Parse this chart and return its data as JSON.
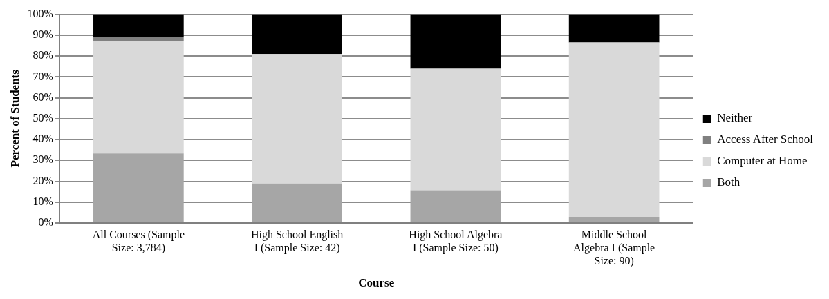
{
  "chart_data": {
    "type": "bar",
    "stacked": true,
    "xlabel": "Course",
    "ylabel": "Percent of Students",
    "categories": [
      "All Courses (Sample Size: 3,784)",
      "High School English I (Sample Size: 42)",
      "High School Algebra I (Sample Size: 50)",
      "Middle School Algebra I (Sample Size: 90)"
    ],
    "series": [
      {
        "name": "Both",
        "color": "#a6a6a6",
        "values": [
          33.3,
          18.9,
          15.7,
          3.0
        ]
      },
      {
        "name": "Computer at Home",
        "color": "#d9d9d9",
        "values": [
          53.9,
          62.0,
          58.2,
          83.5
        ]
      },
      {
        "name": "Access After School",
        "color": "#808080",
        "values": [
          2.0,
          0,
          0,
          0
        ]
      },
      {
        "name": "Neither",
        "color": "#000000",
        "values": [
          10.8,
          19.1,
          26.1,
          13.5
        ]
      }
    ],
    "ylim": [
      0,
      100
    ],
    "yticks": [
      {
        "value": 0,
        "label": "0%"
      },
      {
        "value": 10,
        "label": "10%"
      },
      {
        "value": 20,
        "label": "20%"
      },
      {
        "value": 30,
        "label": "30%"
      },
      {
        "value": 40,
        "label": "40%"
      },
      {
        "value": 50,
        "label": "50%"
      },
      {
        "value": 60,
        "label": "60%"
      },
      {
        "value": 70,
        "label": "70%"
      },
      {
        "value": 80,
        "label": "80%"
      },
      {
        "value": 90,
        "label": "90%"
      },
      {
        "value": 100,
        "label": "100%"
      }
    ],
    "grid": "y",
    "legend": "right"
  }
}
